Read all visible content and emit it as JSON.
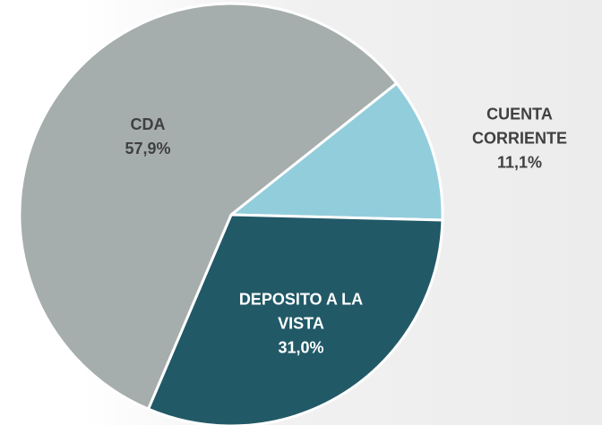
{
  "chart_data": {
    "type": "pie",
    "categories": [
      "CUENTA CORRIENTE",
      "DEPOSITO A LA VISTA",
      "CDA"
    ],
    "values": [
      11.1,
      31.0,
      57.9
    ],
    "value_labels": [
      "11,1%",
      "31,0%",
      "57,9%"
    ],
    "colors": [
      "#92cddc",
      "#215967",
      "#a6adad"
    ]
  }
}
